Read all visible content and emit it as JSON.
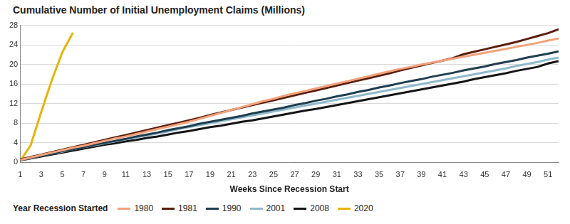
{
  "chart_data": {
    "type": "line",
    "title": "Cumulative Number of Initial Unemployment Claims (Millions)",
    "x_label": "Weeks Since Recession Start",
    "legend_title": "Year Recession Started",
    "legend": "bottom",
    "grid": true,
    "x": [
      1,
      2,
      3,
      4,
      5,
      6,
      7,
      8,
      9,
      10,
      11,
      12,
      13,
      14,
      15,
      16,
      17,
      18,
      19,
      20,
      21,
      22,
      23,
      24,
      25,
      26,
      27,
      28,
      29,
      30,
      31,
      32,
      33,
      34,
      35,
      36,
      37,
      38,
      39,
      40,
      41,
      42,
      43,
      44,
      45,
      46,
      47,
      48,
      49,
      50,
      51,
      52
    ],
    "xlim": [
      1,
      52
    ],
    "xticks": [
      1,
      3,
      5,
      7,
      9,
      11,
      13,
      15,
      17,
      19,
      21,
      23,
      25,
      27,
      29,
      31,
      33,
      35,
      37,
      39,
      41,
      43,
      45,
      47,
      49,
      51
    ],
    "ylim": [
      0,
      28
    ],
    "yticks": [
      0,
      4,
      8,
      12,
      16,
      20,
      24,
      28
    ],
    "series": [
      {
        "name": "1980",
        "color": "#f2a27c",
        "values": [
          0.5,
          1.0,
          1.5,
          2.0,
          2.5,
          3.0,
          3.4,
          3.9,
          4.4,
          4.9,
          5.3,
          5.8,
          6.3,
          6.8,
          7.3,
          7.8,
          8.3,
          8.9,
          9.5,
          10.1,
          10.7,
          11.3,
          11.9,
          12.5,
          13.0,
          13.6,
          14.1,
          14.6,
          15.1,
          15.6,
          16.1,
          16.6,
          17.1,
          17.6,
          18.1,
          18.6,
          19.1,
          19.5,
          20.0,
          20.4,
          20.8,
          21.2,
          21.6,
          22.0,
          22.4,
          22.8,
          23.2,
          23.6,
          24.0,
          24.4,
          24.9,
          25.3
        ]
      },
      {
        "name": "1981",
        "color": "#5a1e0c",
        "values": [
          0.6,
          1.1,
          1.6,
          2.1,
          2.6,
          3.1,
          3.6,
          4.1,
          4.6,
          5.1,
          5.6,
          6.1,
          6.6,
          7.1,
          7.6,
          8.1,
          8.6,
          9.1,
          9.7,
          10.2,
          10.7,
          11.2,
          11.7,
          12.2,
          12.7,
          13.2,
          13.7,
          14.2,
          14.7,
          15.2,
          15.7,
          16.2,
          16.7,
          17.2,
          17.7,
          18.2,
          18.8,
          19.3,
          19.8,
          20.3,
          20.8,
          21.3,
          22.1,
          22.6,
          23.1,
          23.6,
          24.1,
          24.6,
          25.2,
          25.8,
          26.4,
          27.2
        ]
      },
      {
        "name": "1990",
        "color": "#1f3e4e",
        "values": [
          0.5,
          0.9,
          1.4,
          1.8,
          2.3,
          2.7,
          3.1,
          3.6,
          4.0,
          4.4,
          4.8,
          5.3,
          5.7,
          6.1,
          6.6,
          7.0,
          7.4,
          7.9,
          8.3,
          8.7,
          9.1,
          9.5,
          10.0,
          10.4,
          10.8,
          11.2,
          11.7,
          12.1,
          12.6,
          13.0,
          13.5,
          13.9,
          14.4,
          14.8,
          15.3,
          15.7,
          16.2,
          16.6,
          17.0,
          17.5,
          17.9,
          18.3,
          18.8,
          19.2,
          19.6,
          20.1,
          20.5,
          20.9,
          21.4,
          21.8,
          22.2,
          22.7
        ]
      },
      {
        "name": "2001",
        "color": "#8fb9cb",
        "values": [
          0.5,
          0.9,
          1.4,
          1.8,
          2.2,
          2.7,
          3.1,
          3.5,
          3.9,
          4.3,
          4.7,
          5.1,
          5.5,
          5.9,
          6.3,
          6.8,
          7.2,
          7.6,
          8.0,
          8.4,
          8.8,
          9.2,
          9.6,
          10.0,
          10.4,
          10.8,
          11.2,
          11.6,
          12.0,
          12.4,
          12.8,
          13.2,
          13.6,
          14.0,
          14.4,
          14.8,
          15.2,
          15.6,
          16.0,
          16.4,
          16.8,
          17.2,
          17.6,
          18.0,
          18.4,
          18.8,
          19.2,
          19.7,
          20.1,
          20.5,
          21.0,
          21.4
        ]
      },
      {
        "name": "2008",
        "color": "#141414",
        "values": [
          0.4,
          0.8,
          1.2,
          1.6,
          2.0,
          2.4,
          2.8,
          3.2,
          3.6,
          3.9,
          4.3,
          4.6,
          5.0,
          5.3,
          5.7,
          6.1,
          6.4,
          6.8,
          7.2,
          7.5,
          7.9,
          8.3,
          8.6,
          9.0,
          9.4,
          9.8,
          10.2,
          10.6,
          10.9,
          11.3,
          11.7,
          12.1,
          12.5,
          12.9,
          13.3,
          13.7,
          14.1,
          14.5,
          14.9,
          15.3,
          15.7,
          16.1,
          16.5,
          17.0,
          17.4,
          17.8,
          18.2,
          18.7,
          19.1,
          19.5,
          20.2,
          20.7
        ]
      },
      {
        "name": "2020",
        "color": "#e8b40c",
        "values": [
          0.3,
          3.5,
          10.3,
          16.8,
          22.5,
          26.5,
          null,
          null,
          null,
          null,
          null,
          null,
          null,
          null,
          null,
          null,
          null,
          null,
          null,
          null,
          null,
          null,
          null,
          null,
          null,
          null,
          null,
          null,
          null,
          null,
          null,
          null,
          null,
          null,
          null,
          null,
          null,
          null,
          null,
          null,
          null,
          null,
          null,
          null,
          null,
          null,
          null,
          null,
          null,
          null,
          null,
          null
        ]
      }
    ]
  }
}
